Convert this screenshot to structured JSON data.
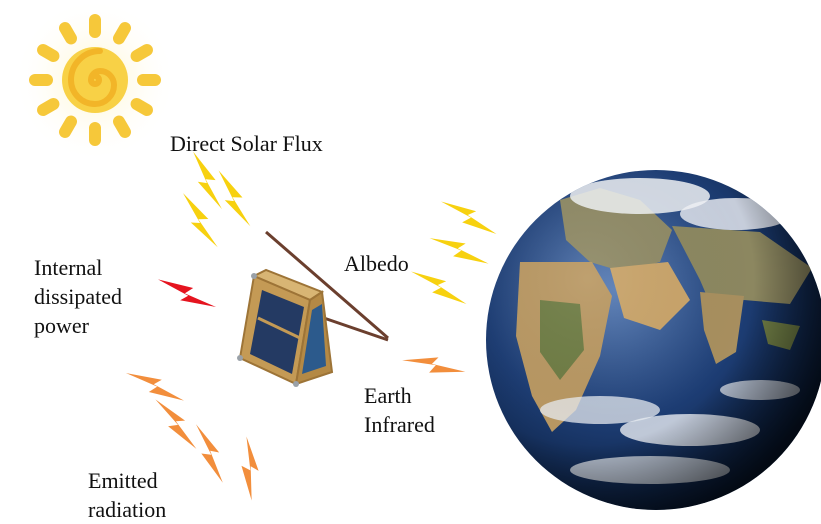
{
  "labels": {
    "solar": "Direct Solar Flux",
    "albedo": "Albedo",
    "internal": [
      "Internal",
      "dissipated",
      "power"
    ],
    "earth_ir": [
      "Earth",
      "Infrared"
    ],
    "emitted": [
      "Emitted",
      "radiation"
    ]
  },
  "icons": {
    "sun": "sun-icon",
    "earth": "earth-globe",
    "satellite": "cubesat-satellite",
    "bolt": "lightning-bolt-icon"
  },
  "colors": {
    "sun": "#f6c83a",
    "solar_bolt": "#f7d10f",
    "internal_bolt": "#e5141f",
    "ir_bolt": "#f28e3c",
    "ocean": "#1d3d74",
    "land": "#b99863",
    "frame": "#c49a55",
    "panel": "#243a63"
  }
}
